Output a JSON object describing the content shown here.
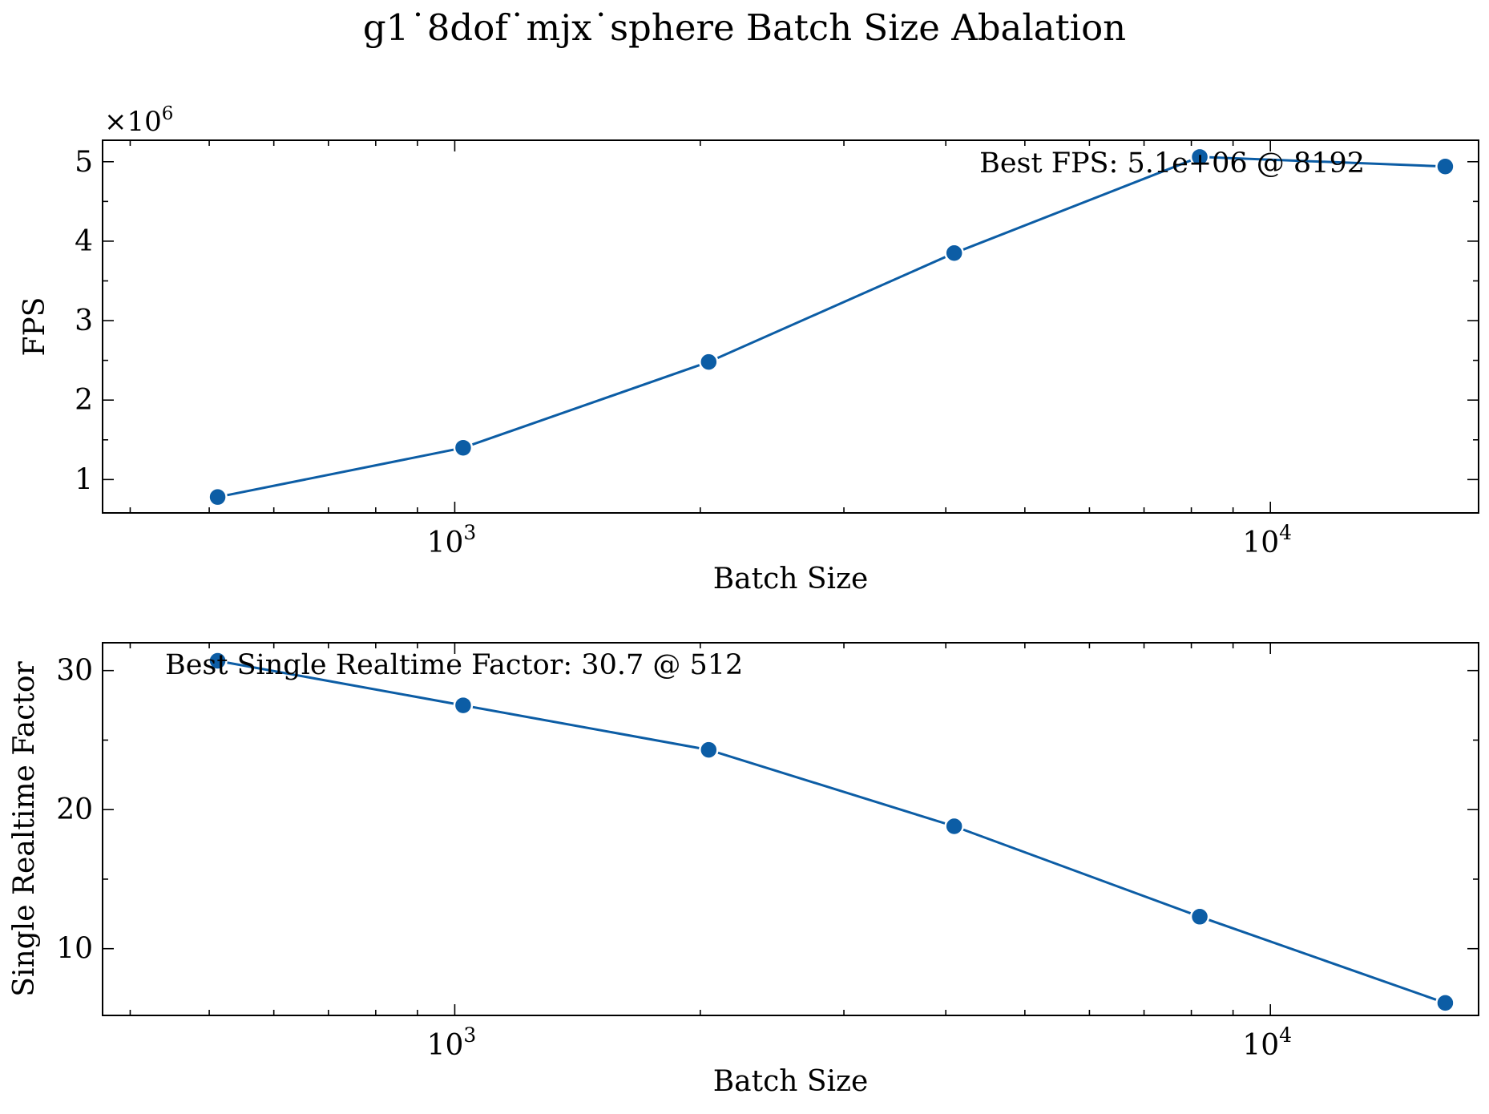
{
  "figure": {
    "title": "g1˙8dof˙mjx˙sphere Batch Size Abalation"
  },
  "chart_data": [
    {
      "type": "line",
      "xscale": "log",
      "xlabel": "Batch Size",
      "ylabel": "FPS",
      "y_multiplier_label": "×10",
      "y_multiplier_exp": "6",
      "x_tick_labels": [
        {
          "base": "10",
          "exp": "3",
          "value": 1000
        },
        {
          "base": "10",
          "exp": "4",
          "value": 10000
        }
      ],
      "y_ticks": [
        1,
        2,
        3,
        4,
        5
      ],
      "xlim": [
        370,
        18000
      ],
      "ylim": [
        0.58,
        5.27
      ],
      "series": [
        {
          "x": [
            512,
            1024,
            2048,
            4096,
            8192,
            16384
          ],
          "values": [
            0.78,
            1.4,
            2.48,
            3.85,
            5.06,
            4.94
          ],
          "color": "#0C5DA5"
        }
      ],
      "annotation": "Best FPS: 5.1e+06 @ 8192",
      "grid": false
    },
    {
      "type": "line",
      "xscale": "log",
      "xlabel": "Batch Size",
      "ylabel": "Single Realtime Factor",
      "x_tick_labels": [
        {
          "base": "10",
          "exp": "3",
          "value": 1000
        },
        {
          "base": "10",
          "exp": "4",
          "value": 10000
        }
      ],
      "y_ticks": [
        10,
        20,
        30
      ],
      "xlim": [
        370,
        18000
      ],
      "ylim": [
        5.2,
        32.0
      ],
      "series": [
        {
          "x": [
            512,
            1024,
            2048,
            4096,
            8192,
            16384
          ],
          "values": [
            30.7,
            27.5,
            24.3,
            18.8,
            12.3,
            6.1
          ],
          "color": "#0C5DA5"
        }
      ],
      "annotation": "Best Single Realtime Factor: 30.7 @ 512",
      "grid": false
    }
  ]
}
